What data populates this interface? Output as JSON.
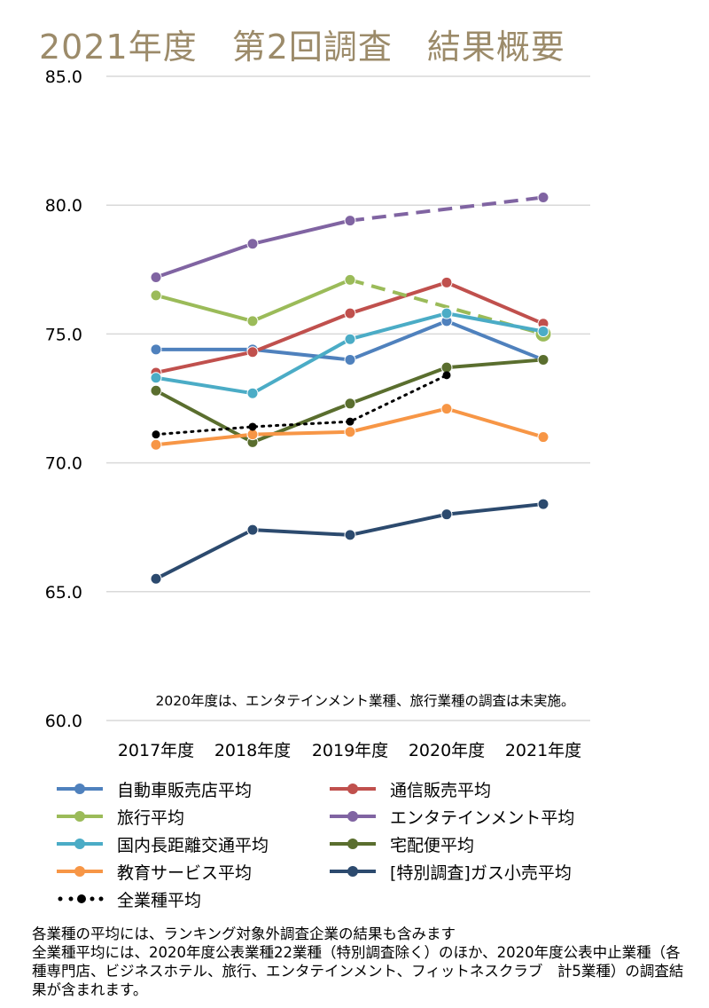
{
  "title": "2021年度　第2回調査　結果概要",
  "chart_data": {
    "type": "line",
    "categories": [
      "2017年度",
      "2018年度",
      "2019年度",
      "2020年度",
      "2021年度"
    ],
    "ylim": [
      60.0,
      85.0
    ],
    "yticks": [
      "85.0",
      "80.0",
      "75.0",
      "70.0",
      "65.0",
      "60.0"
    ],
    "ytick_values": [
      85,
      80,
      75,
      70,
      65,
      60
    ],
    "grid": true,
    "annotation": "2020年度は、エンタテインメント業種、旅行業種の調査は未実施。",
    "series": [
      {
        "name": "自動車販売店平均",
        "color": "#4F81BD",
        "values": [
          74.4,
          74.4,
          74.0,
          75.5,
          74.0
        ],
        "style": "solid"
      },
      {
        "name": "通信販売平均",
        "color": "#C0504D",
        "values": [
          73.5,
          74.3,
          75.8,
          77.0,
          75.4
        ],
        "style": "solid"
      },
      {
        "name": "旅行平均",
        "color": "#9BBB59",
        "values": [
          76.5,
          75.5,
          77.1,
          null,
          75.0
        ],
        "style": "solid-then-dashed"
      },
      {
        "name": "エンタテインメント平均",
        "color": "#8064A2",
        "values": [
          77.2,
          78.5,
          79.4,
          null,
          80.3
        ],
        "style": "solid-then-dashed"
      },
      {
        "name": "国内長距離交通平均",
        "color": "#4BACC6",
        "values": [
          73.3,
          72.7,
          74.8,
          75.8,
          75.1
        ],
        "style": "solid"
      },
      {
        "name": "宅配便平均",
        "color": "#5A6E2E",
        "values": [
          72.8,
          70.8,
          72.3,
          73.7,
          74.0
        ],
        "style": "solid"
      },
      {
        "name": "教育サービス平均",
        "color": "#F79646",
        "values": [
          70.7,
          71.1,
          71.2,
          72.1,
          71.0
        ],
        "style": "solid"
      },
      {
        "name": "[特別調査]ガス小売平均",
        "color": "#2C4A6E",
        "values": [
          65.5,
          67.4,
          67.2,
          68.0,
          68.4
        ],
        "style": "solid"
      },
      {
        "name": "全業種平均",
        "color": "#000000",
        "values": [
          71.1,
          71.4,
          71.6,
          73.4,
          null
        ],
        "style": "dotted"
      }
    ]
  },
  "footnotes": [
    "各業種の平均には、ランキング対象外調査企業の結果も含みます",
    "全業種平均には、2020年度公表業種22業種（特別調査除く）のほか、2020年度公表中止業種（各種専門店、ビジネスホテル、旅行、エンタテインメント、フィットネスクラブ　計5業種）の調査結果が含まれます。"
  ]
}
